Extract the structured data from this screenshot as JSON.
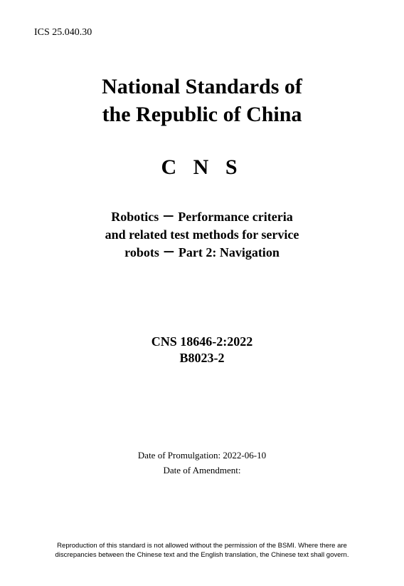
{
  "ics": "ICS 25.040.30",
  "title_line1": "National Standards of",
  "title_line2": "the Republic of China",
  "acronym": "C N S",
  "subtitle_line1": "Robotics －  Performance criteria",
  "subtitle_line2": "and related test methods for service",
  "subtitle_line3": "robots －  Part 2: Navigation",
  "standard_no_line1": "CNS 18646-2:2022",
  "standard_no_line2": "B8023-2",
  "date_promulgation": "Date of Promulgation: 2022-06-10",
  "date_amendment": "Date of Amendment:",
  "footer_line1": "Reproduction of this standard is not allowed without the permission of the BSMI. Where there are",
  "footer_line2": "discrepancies between the Chinese text and the English translation, the Chinese text shall govern.",
  "colors": {
    "background": "#ffffff",
    "text": "#000000"
  },
  "fonts": {
    "serif": "Times New Roman",
    "sans": "Arial",
    "title_size_pt": 30,
    "subtitle_size_pt": 18,
    "body_size_pt": 13,
    "footer_size_pt": 9.5
  }
}
